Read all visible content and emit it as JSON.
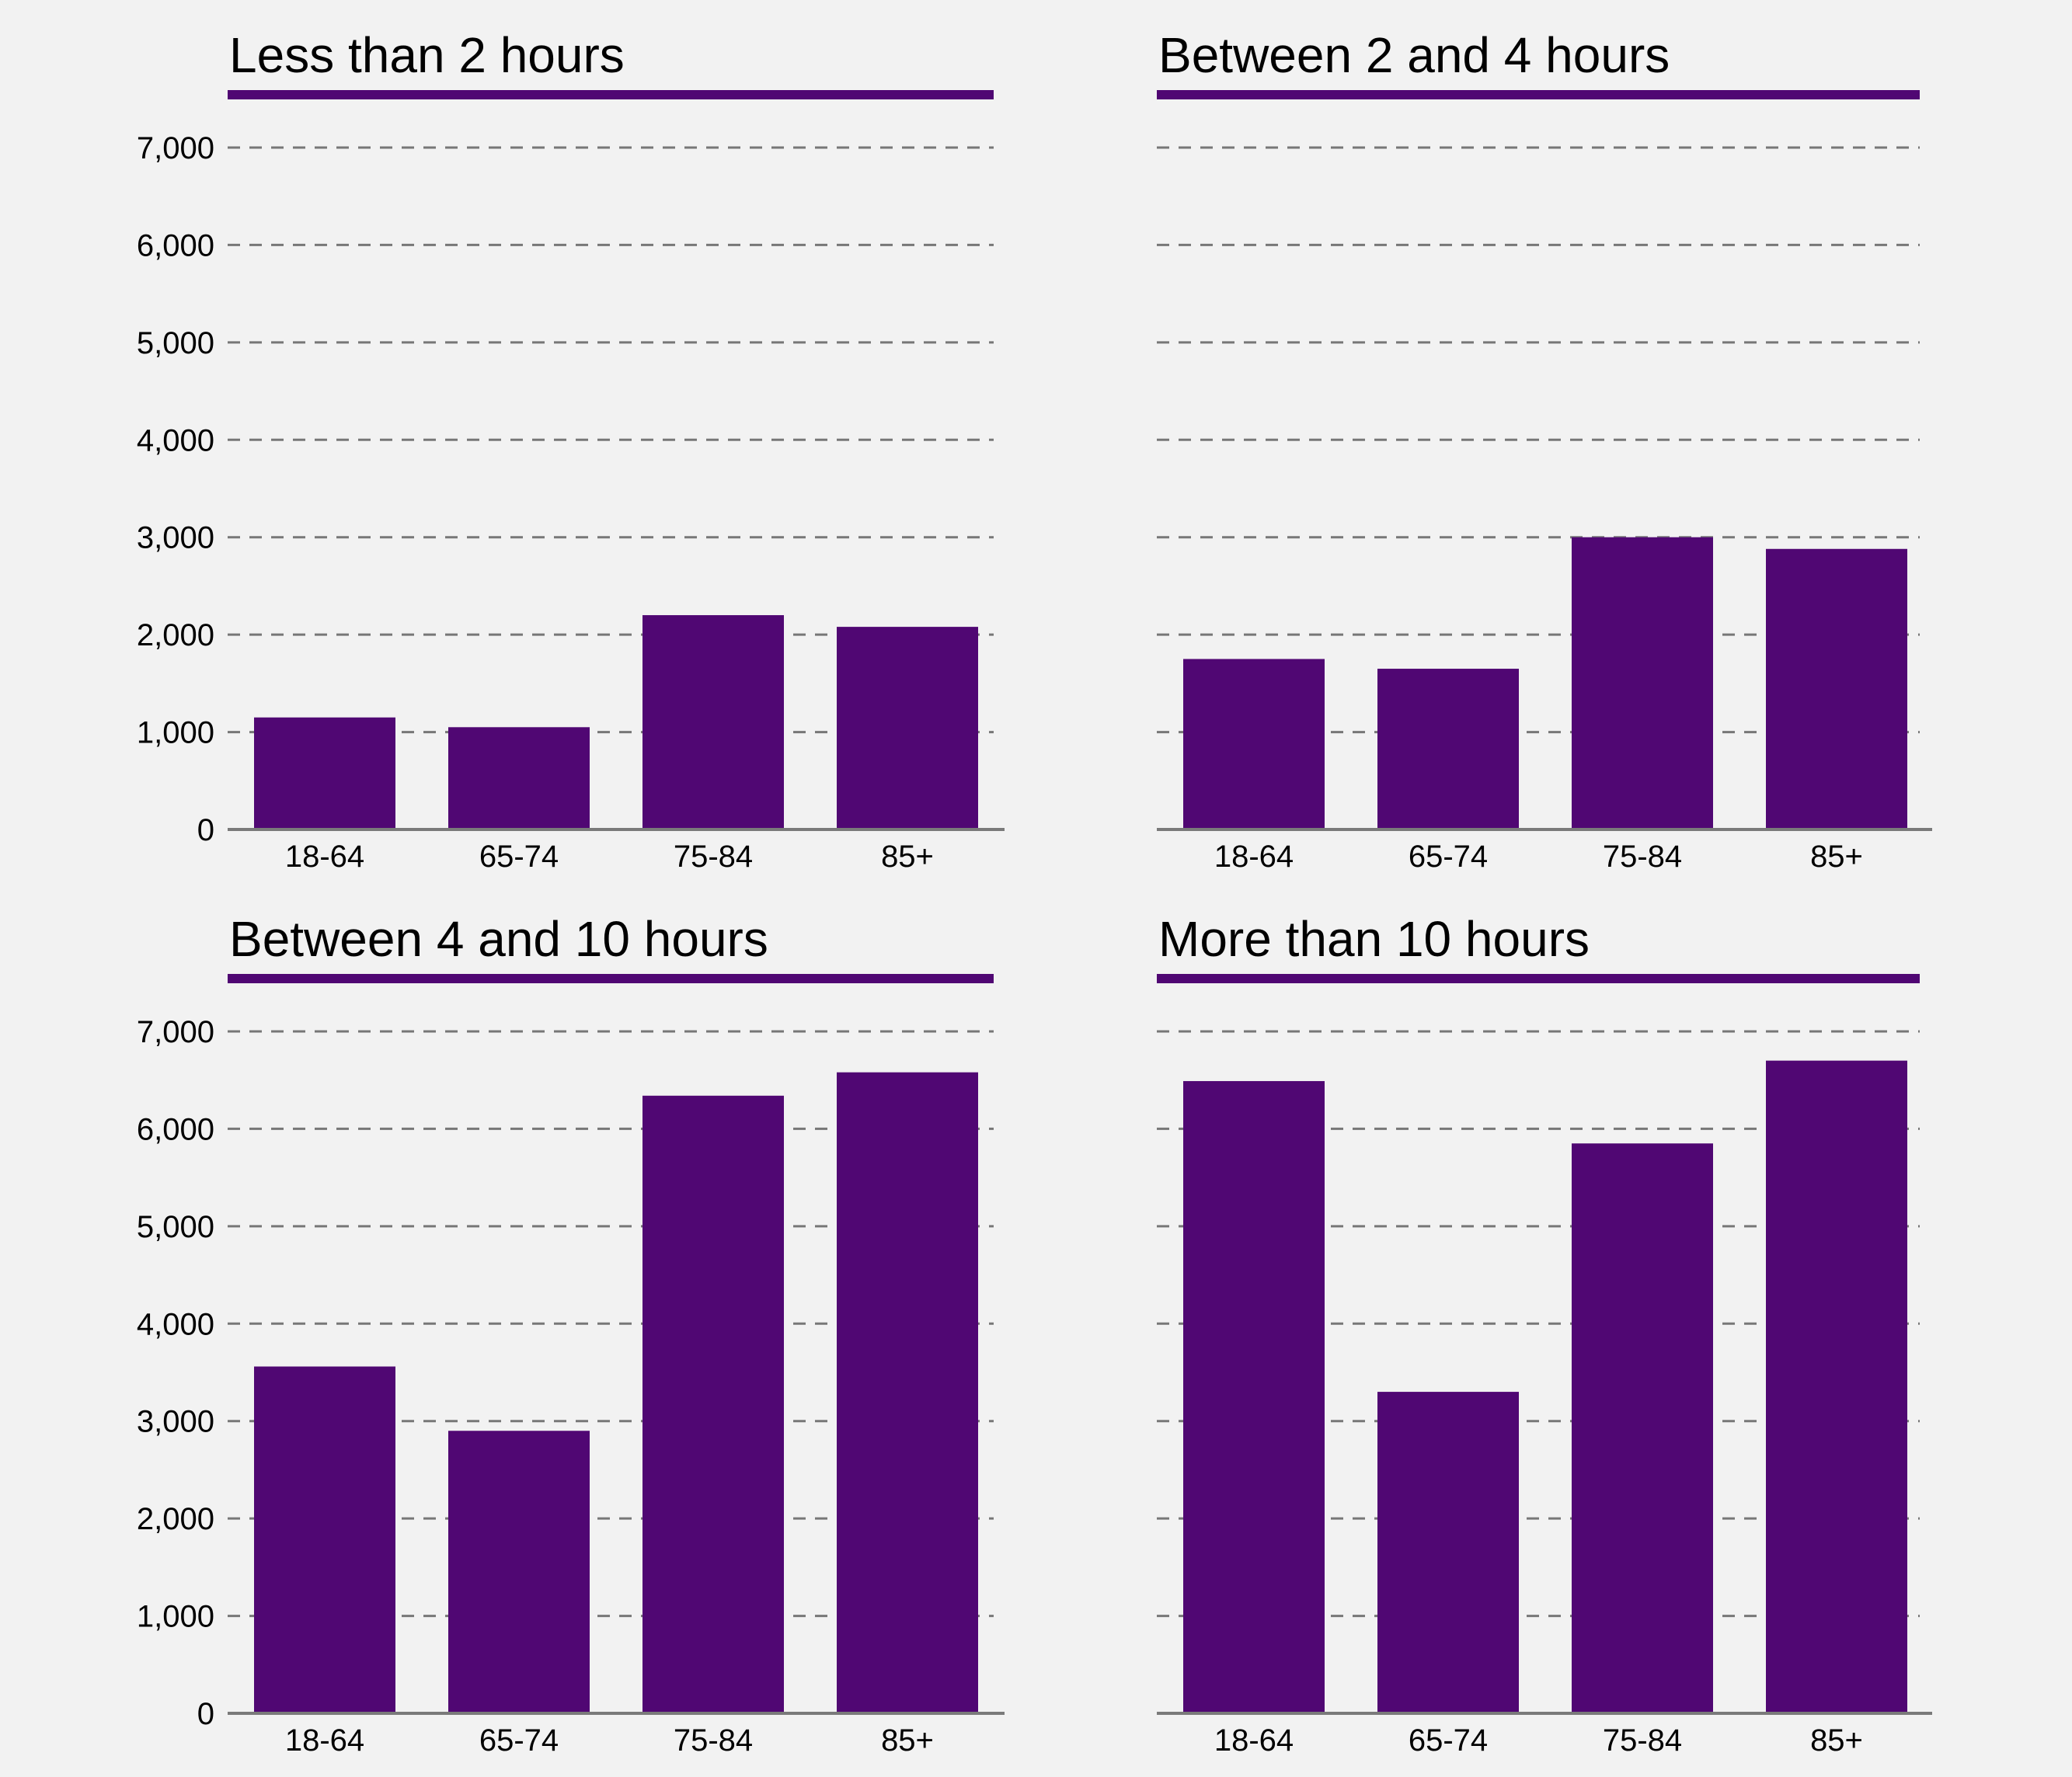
{
  "colors": {
    "bar": "#500773",
    "rule": "#500773",
    "grid": "#777777",
    "background": "#f2f2f2"
  },
  "chart_data": [
    {
      "type": "bar",
      "title": "Less than 2 hours",
      "categories": [
        "18-64",
        "65-74",
        "75-84",
        "85+"
      ],
      "values": [
        1150,
        1050,
        2200,
        2080
      ],
      "ylim": [
        0,
        7000
      ],
      "yticks": [
        "0",
        "1,000",
        "2,000",
        "3,000",
        "4,000",
        "5,000",
        "6,000",
        "7,000"
      ],
      "show_ytick_labels": true,
      "grid": true
    },
    {
      "type": "bar",
      "title": "Between 2 and 4 hours",
      "categories": [
        "18-64",
        "65-74",
        "75-84",
        "85+"
      ],
      "values": [
        1750,
        1650,
        3000,
        2880
      ],
      "ylim": [
        0,
        7000
      ],
      "yticks": [
        "0",
        "1,000",
        "2,000",
        "3,000",
        "4,000",
        "5,000",
        "6,000",
        "7,000"
      ],
      "show_ytick_labels": false,
      "grid": true
    },
    {
      "type": "bar",
      "title": "Between 4 and 10 hours",
      "categories": [
        "18-64",
        "65-74",
        "75-84",
        "85+"
      ],
      "values": [
        3560,
        2900,
        6340,
        6580
      ],
      "ylim": [
        0,
        7000
      ],
      "yticks": [
        "0",
        "1,000",
        "2,000",
        "3,000",
        "4,000",
        "5,000",
        "6,000",
        "7,000"
      ],
      "show_ytick_labels": true,
      "grid": true
    },
    {
      "type": "bar",
      "title": "More than 10 hours",
      "categories": [
        "18-64",
        "65-74",
        "75-84",
        "85+"
      ],
      "values": [
        6490,
        3300,
        5850,
        6700
      ],
      "ylim": [
        0,
        7000
      ],
      "yticks": [
        "0",
        "1,000",
        "2,000",
        "3,000",
        "4,000",
        "5,000",
        "6,000",
        "7,000"
      ],
      "show_ytick_labels": false,
      "grid": true
    }
  ]
}
